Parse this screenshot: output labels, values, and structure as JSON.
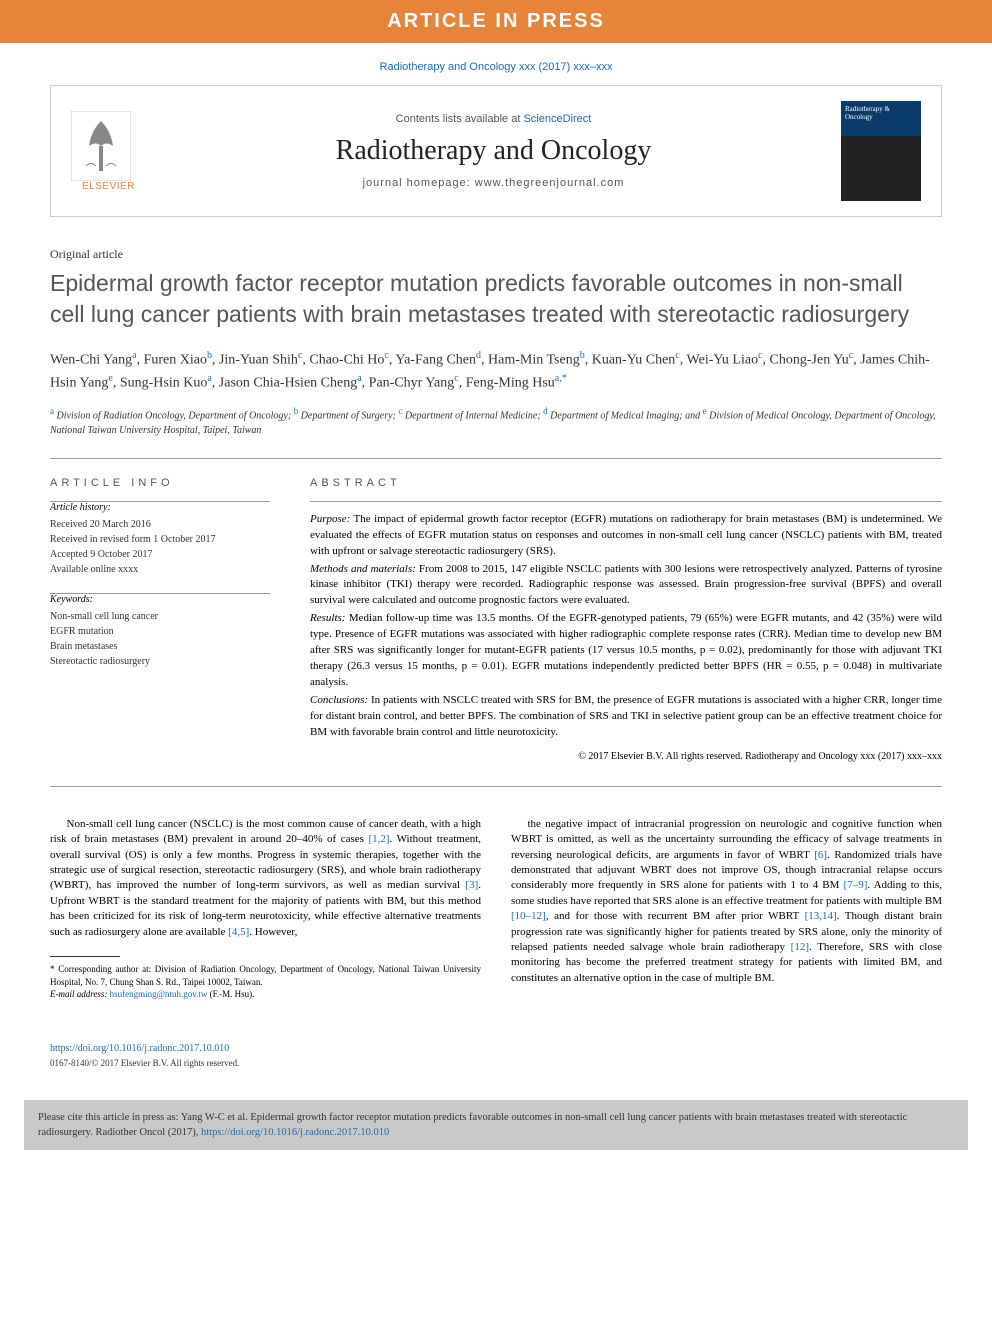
{
  "banner": "ARTICLE IN PRESS",
  "citation_top": "Radiotherapy and Oncology xxx (2017) xxx–xxx",
  "header": {
    "contents_prefix": "Contents lists available at ",
    "contents_link": "ScienceDirect",
    "journal": "Radiotherapy and Oncology",
    "homepage_label": "journal homepage: ",
    "homepage_url": "www.thegreenjournal.com",
    "elsevier": "ELSEVIER",
    "cover_title": "Radiotherapy & Oncology"
  },
  "article_type": "Original article",
  "title": "Epidermal growth factor receptor mutation predicts favorable outcomes in non-small cell lung cancer patients with brain metastases treated with stereotactic radiosurgery",
  "authors_html": "Wen-Chi Yang<sup>a</sup>, Furen Xiao<sup>b</sup>, Jin-Yuan Shih<sup>c</sup>, Chao-Chi Ho<sup>c</sup>, Ya-Fang Chen<sup>d</sup>, Ham-Min Tseng<sup>b</sup>, Kuan-Yu Chen<sup>c</sup>, Wei-Yu Liao<sup>c</sup>, Chong-Jen Yu<sup>c</sup>, James Chih-Hsin Yang<sup>e</sup>, Sung-Hsin Kuo<sup>a</sup>, Jason Chia-Hsien Cheng<sup>a</sup>, Pan-Chyr Yang<sup>c</sup>, Feng-Ming Hsu<sup>a,*</sup>",
  "affiliations_html": "<sup>a</sup> Division of Radiation Oncology, Department of Oncology; <sup>b</sup> Department of Surgery; <sup>c</sup> Department of Internal Medicine; <sup>d</sup> Department of Medical Imaging; and <sup>e</sup> Division of Medical Oncology, Department of Oncology, National Taiwan University Hospital, Taipei, Taiwan",
  "info": {
    "heading": "ARTICLE INFO",
    "history_label": "Article history:",
    "history": [
      "Received 20 March 2016",
      "Received in revised form 1 October 2017",
      "Accepted 9 October 2017",
      "Available online xxxx"
    ],
    "keywords_label": "Keywords:",
    "keywords": [
      "Non-small cell lung cancer",
      "EGFR mutation",
      "Brain metastases",
      "Stereotactic radiosurgery"
    ]
  },
  "abstract": {
    "heading": "ABSTRACT",
    "sections": [
      {
        "label": "Purpose:",
        "text": "The impact of epidermal growth factor receptor (EGFR) mutations on radiotherapy for brain metastases (BM) is undetermined. We evaluated the effects of EGFR mutation status on responses and outcomes in non-small cell lung cancer (NSCLC) patients with BM, treated with upfront or salvage stereotactic radiosurgery (SRS)."
      },
      {
        "label": "Methods and materials:",
        "text": "From 2008 to 2015, 147 eligible NSCLC patients with 300 lesions were retrospectively analyzed. Patterns of tyrosine kinase inhibitor (TKI) therapy were recorded. Radiographic response was assessed. Brain progression-free survival (BPFS) and overall survival were calculated and outcome prognostic factors were evaluated."
      },
      {
        "label": "Results:",
        "text": "Median follow-up time was 13.5 months. Of the EGFR-genotyped patients, 79 (65%) were EGFR mutants, and 42 (35%) were wild type. Presence of EGFR mutations was associated with higher radiographic complete response rates (CRR). Median time to develop new BM after SRS was significantly longer for mutant-EGFR patients (17 versus 10.5 months, p = 0.02), predominantly for those with adjuvant TKI therapy (26.3 versus 15 months, p = 0.01). EGFR mutations independently predicted better BPFS (HR = 0.55, p = 0.048) in multivariate analysis."
      },
      {
        "label": "Conclusions:",
        "text": "In patients with NSCLC treated with SRS for BM, the presence of EGFR mutations is associated with a higher CRR, longer time for distant brain control, and better BPFS. The combination of SRS and TKI in selective patient group can be an effective treatment choice for BM with favorable brain control and little neurotoxicity."
      }
    ],
    "copyright": "© 2017 Elsevier B.V. All rights reserved. Radiotherapy and Oncology xxx (2017) xxx–xxx"
  },
  "body": {
    "col1": "Non-small cell lung cancer (NSCLC) is the most common cause of cancer death, with a high risk of brain metastases (BM) prevalent in around 20–40% of cases [1,2]. Without treatment, overall survival (OS) is only a few months. Progress in systemic therapies, together with the strategic use of surgical resection, stereotactic radiosurgery (SRS), and whole brain radiotherapy (WBRT), has improved the number of long-term survivors, as well as median survival [3]. Upfront WBRT is the standard treatment for the majority of patients with BM, but this method has been criticized for its risk of long-term neurotoxicity, while effective alternative treatments such as radiosurgery alone are available [4,5]. However,",
    "col2": "the negative impact of intracranial progression on neurologic and cognitive function when WBRT is omitted, as well as the uncertainty surrounding the efficacy of salvage treatments in reversing neurological deficits, are arguments in favor of WBRT [6]. Randomized trials have demonstrated that adjuvant WBRT does not improve OS, though intracranial relapse occurs considerably more frequently in SRS alone for patients with 1 to 4 BM [7–9]. Adding to this, some studies have reported that SRS alone is an effective treatment for patients with multiple BM [10–12], and for those with recurrent BM after prior WBRT [13,14]. Though distant brain progression rate was significantly higher for patients treated by SRS alone, only the minority of relapsed patients needed salvage whole brain radiotherapy [12]. Therefore, SRS with close monitoring has become the preferred treatment strategy for patients with limited BM, and constitutes an alternative option in the case of multiple BM."
  },
  "footnote": {
    "corr": "* Corresponding author at: Division of Radiation Oncology, Department of Oncology, National Taiwan University Hospital, No. 7, Chung Shan S. Rd., Taipei 10002, Taiwan.",
    "email_label": "E-mail address: ",
    "email": "hsufengming@ntuh.gov.tw",
    "email_name": " (F.-M. Hsu)."
  },
  "doi": {
    "url": "https://doi.org/10.1016/j.radonc.2017.10.010",
    "issn_copy": "0167-8140/© 2017 Elsevier B.V. All rights reserved."
  },
  "cite_box": {
    "text": "Please cite this article in press as: Yang W-C et al. Epidermal growth factor receptor mutation predicts favorable outcomes in non-small cell lung cancer patients with brain metastases treated with stereotactic radiosurgery. Radiother Oncol (2017), ",
    "link": "https://doi.org/10.1016/j.radonc.2017.10.010"
  },
  "refs": {
    "r12": "[1,2]",
    "r3": "[3]",
    "r45": "[4,5]",
    "r6": "[6]",
    "r79": "[7–9]",
    "r1012": "[10–12]",
    "r1314": "[13,14]",
    "r12b": "[12]"
  }
}
